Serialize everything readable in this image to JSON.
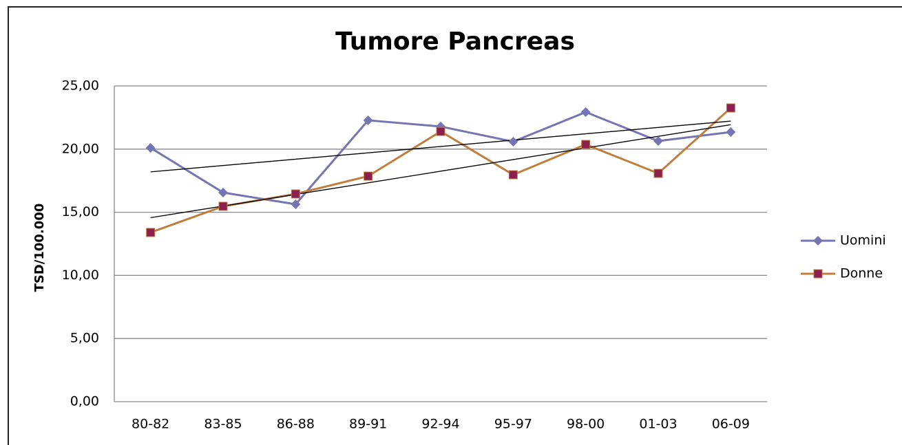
{
  "chart_data": {
    "type": "line",
    "title": "Tumore Pancreas",
    "y_label": "TSD/100.000",
    "categories": [
      "80-82",
      "83-85",
      "86-88",
      "89-91",
      "92-94",
      "95-97",
      "98-00",
      "01-03",
      "06-09"
    ],
    "series": [
      {
        "name": "Uomini",
        "color": "#7575b3",
        "marker": "diamond",
        "marker_color": "#7575b3",
        "values": [
          20.1,
          16.56,
          15.63,
          22.28,
          21.79,
          20.59,
          22.93,
          20.64,
          21.35
        ]
      },
      {
        "name": "Donne",
        "color": "#c07e3c",
        "marker": "square",
        "marker_color": "#8b1f4f",
        "values": [
          13.4,
          15.47,
          16.45,
          17.86,
          21.4,
          17.97,
          20.37,
          18.08,
          23.26
        ]
      }
    ],
    "ylim": [
      0,
      25
    ],
    "yticks": [
      {
        "value": 0,
        "label": "0,00"
      },
      {
        "value": 5,
        "label": "5,00"
      },
      {
        "value": 10,
        "label": "10,00"
      },
      {
        "value": 15,
        "label": "15,00"
      },
      {
        "value": 20,
        "label": "20,00"
      },
      {
        "value": 25,
        "label": "25,00"
      }
    ],
    "grid": true,
    "trendline": true,
    "legend": "right"
  }
}
